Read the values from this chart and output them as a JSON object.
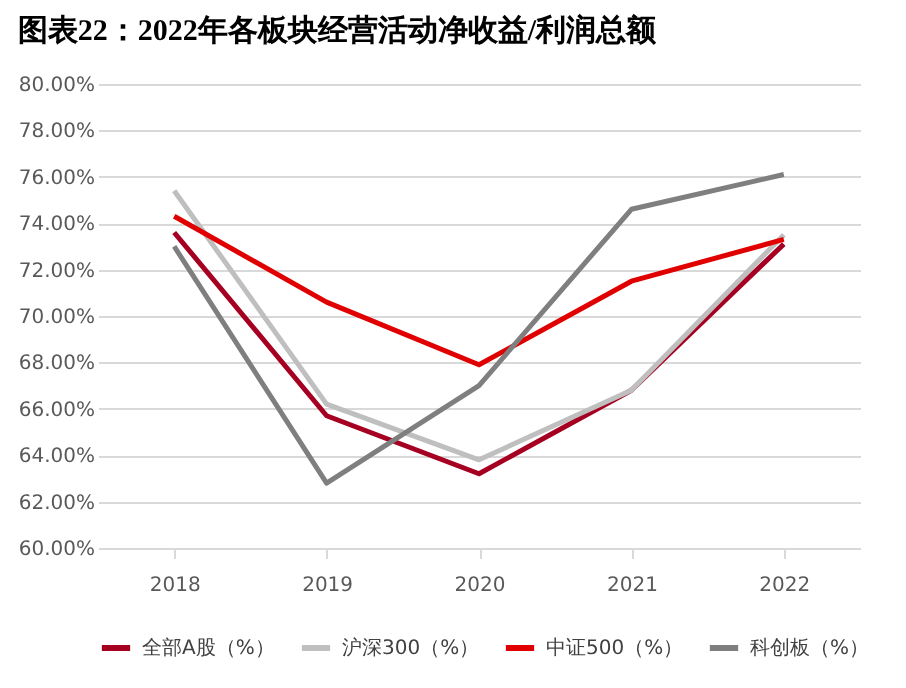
{
  "chart_data": {
    "type": "line",
    "title": "图表22：2022年各板块经营活动净收益/利润总额",
    "categories": [
      "2018",
      "2019",
      "2020",
      "2021",
      "2022"
    ],
    "series": [
      {
        "name": "全部A股（%）",
        "color": "#a50021",
        "values": [
          73.6,
          65.7,
          63.2,
          66.8,
          73.1
        ]
      },
      {
        "name": "沪深300（%）",
        "color": "#bfbfbf",
        "values": [
          75.4,
          66.2,
          63.8,
          66.8,
          73.5
        ]
      },
      {
        "name": "中证500（%）",
        "color": "#e00000",
        "values": [
          74.3,
          70.6,
          67.9,
          71.5,
          73.3
        ]
      },
      {
        "name": "科创板（%）",
        "color": "#7f7f7f",
        "values": [
          73.0,
          62.8,
          67.0,
          74.6,
          76.1
        ]
      }
    ],
    "ylim": [
      60,
      80
    ],
    "yticks": [
      {
        "value": 60,
        "label": "60.00%"
      },
      {
        "value": 62,
        "label": "62.00%"
      },
      {
        "value": 64,
        "label": "64.00%"
      },
      {
        "value": 66,
        "label": "66.00%"
      },
      {
        "value": 68,
        "label": "68.00%"
      },
      {
        "value": 70,
        "label": "70.00%"
      },
      {
        "value": 72,
        "label": "72.00%"
      },
      {
        "value": 74,
        "label": "74.00%"
      },
      {
        "value": 76,
        "label": "76.00%"
      },
      {
        "value": 78,
        "label": "78.00%"
      },
      {
        "value": 80,
        "label": "80.00%"
      }
    ],
    "grid": "y",
    "legend": "bottom",
    "marker": "none",
    "line_style": "solid"
  }
}
